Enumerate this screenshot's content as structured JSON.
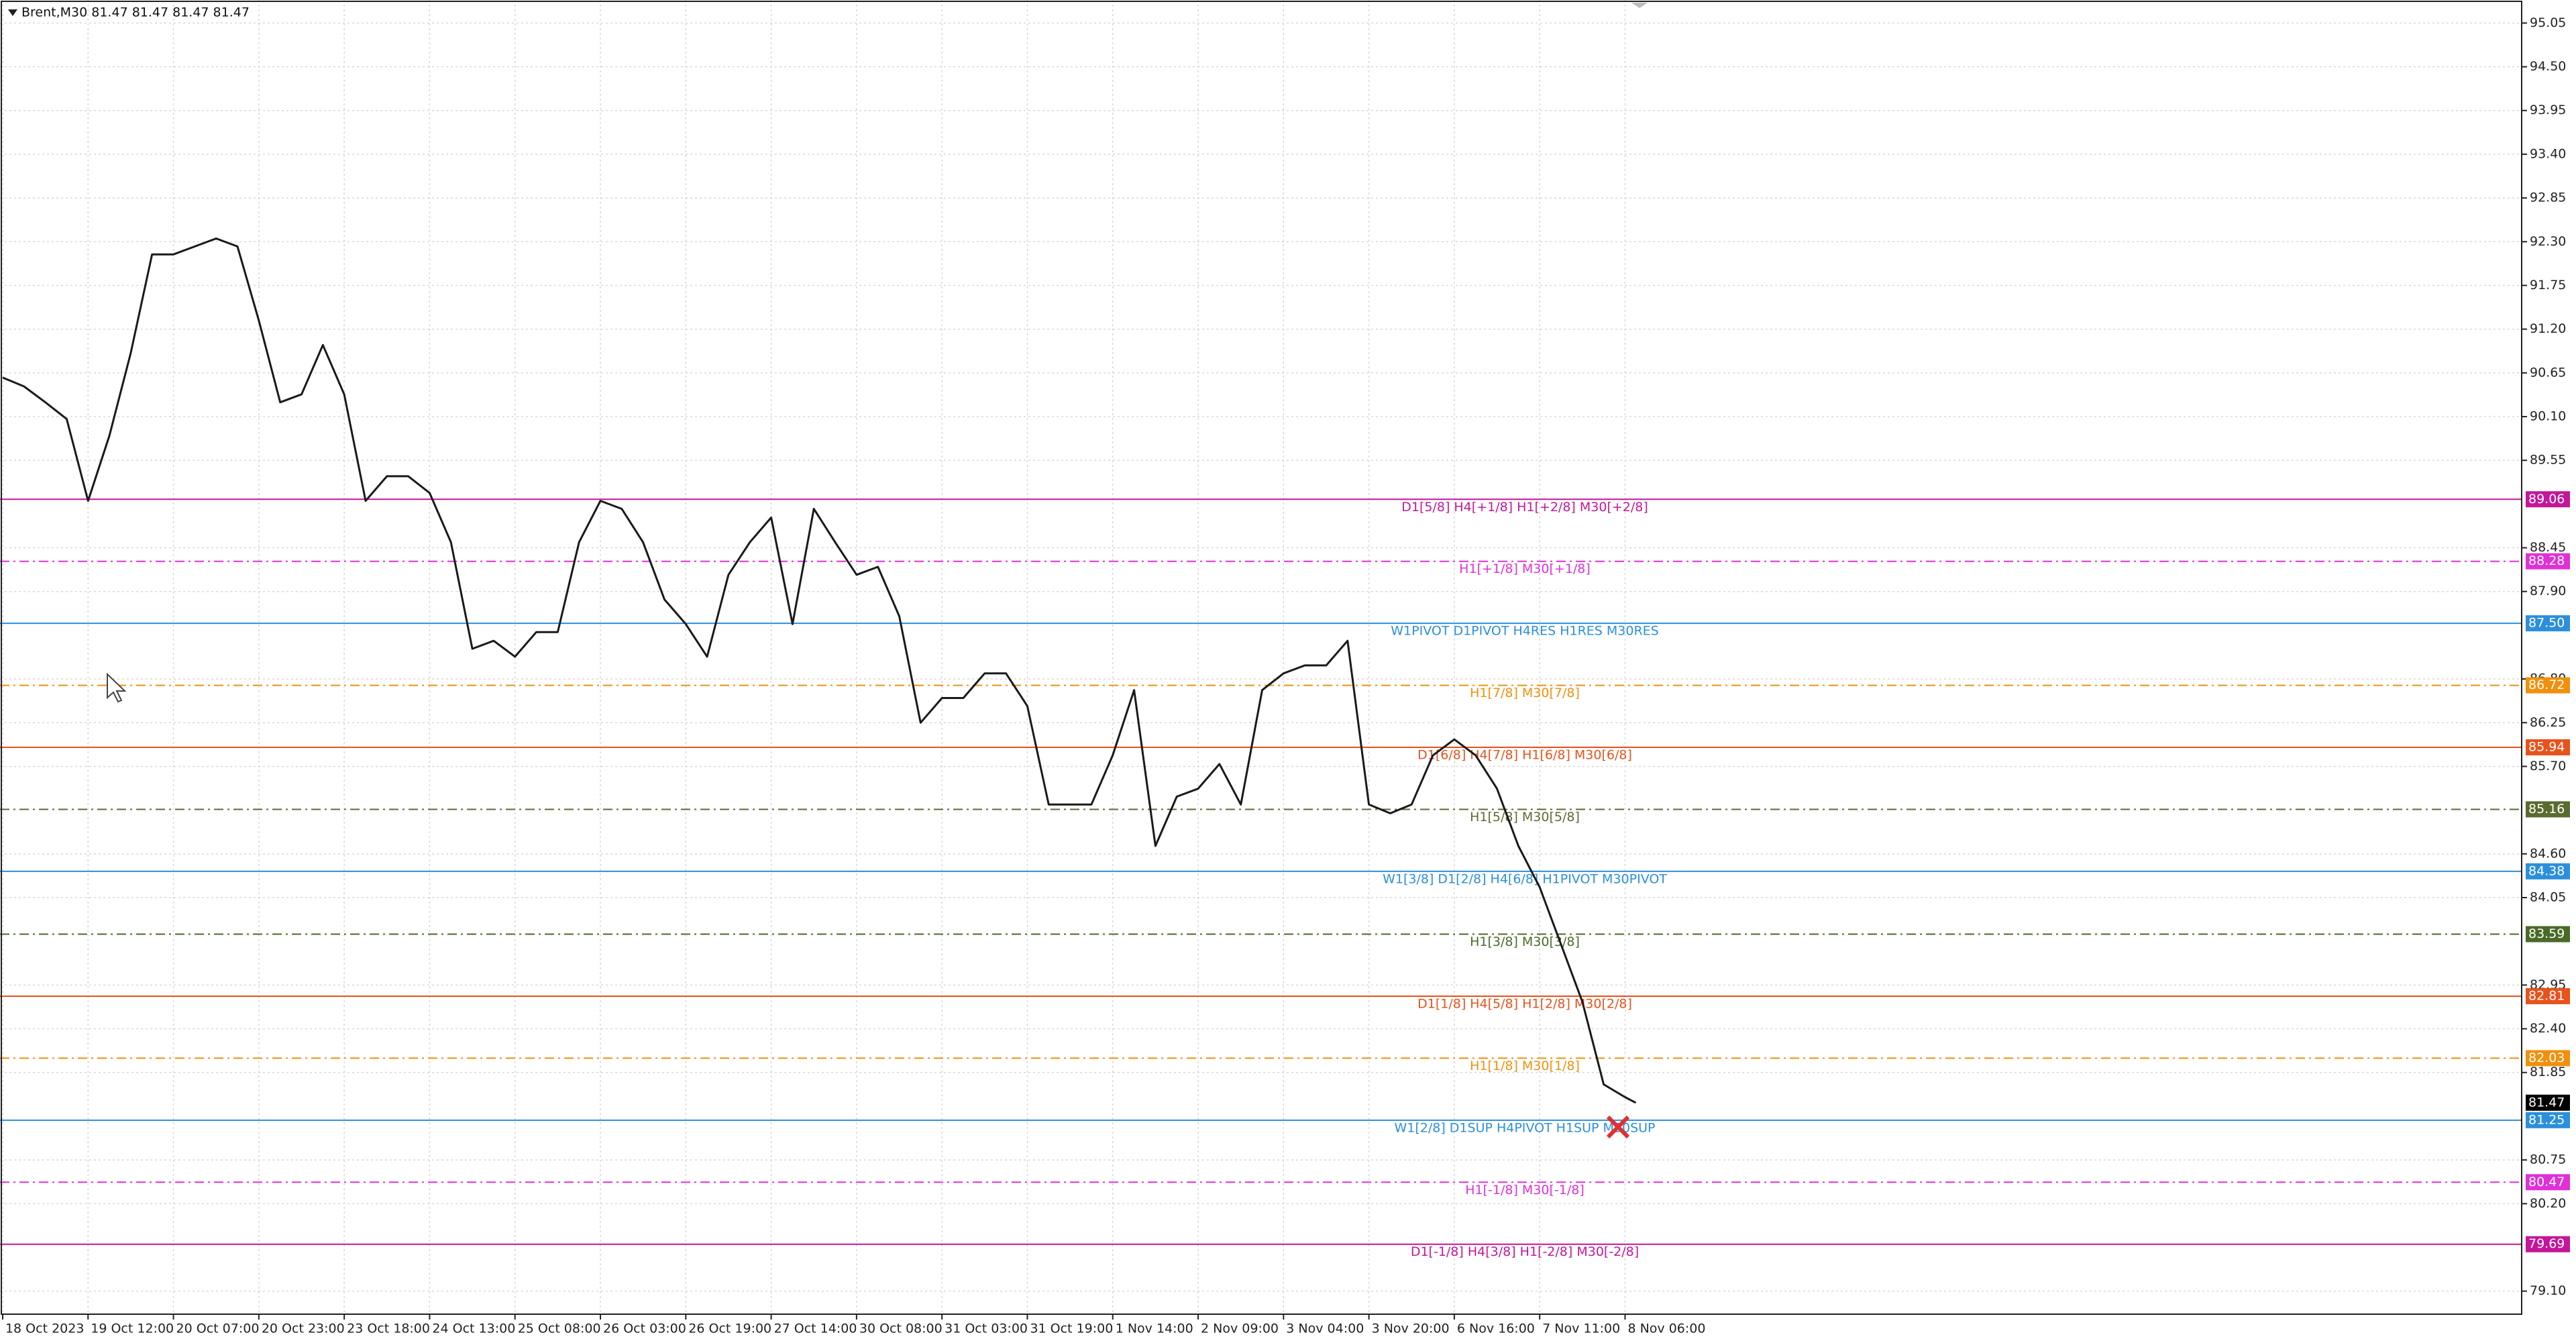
{
  "chart_data": {
    "type": "line",
    "title": "Brent,M30  81.47 81.47 81.47 81.47",
    "color": "#1a1a1a",
    "grid": true,
    "x": [
      0,
      8,
      16,
      24,
      32,
      40,
      48,
      56,
      64,
      72,
      80,
      88,
      96,
      104,
      112,
      120,
      128,
      136,
      144,
      152,
      160,
      168,
      176,
      184,
      192,
      200,
      208,
      216,
      224,
      232,
      240,
      248,
      256,
      264,
      272,
      280,
      288,
      296,
      304,
      312,
      320,
      328,
      336,
      344,
      352,
      360,
      368,
      376,
      384,
      392,
      400,
      408,
      416,
      424,
      432,
      440,
      448,
      456,
      464,
      472,
      480,
      488,
      496,
      504,
      512,
      520,
      528,
      536,
      544,
      552,
      560,
      568,
      576,
      584,
      592,
      600,
      608,
      612
    ],
    "values": [
      90.59,
      90.48,
      90.28,
      90.07,
      89.04,
      89.86,
      90.9,
      92.14,
      92.14,
      92.24,
      92.34,
      92.24,
      91.31,
      90.28,
      90.38,
      91.0,
      90.38,
      89.04,
      89.35,
      89.35,
      89.14,
      88.52,
      87.18,
      87.28,
      87.08,
      87.39,
      87.39,
      88.52,
      89.04,
      88.94,
      88.52,
      87.8,
      87.49,
      87.08,
      88.11,
      88.52,
      88.83,
      87.49,
      88.94,
      88.52,
      88.11,
      88.21,
      87.59,
      86.25,
      86.56,
      86.56,
      86.87,
      86.87,
      86.46,
      85.22,
      85.22,
      85.22,
      85.84,
      86.66,
      84.7,
      85.32,
      85.42,
      85.73,
      85.22,
      86.66,
      86.87,
      86.97,
      86.97,
      87.28,
      85.22,
      85.11,
      85.22,
      85.84,
      86.04,
      85.84,
      85.42,
      84.7,
      84.18,
      83.46,
      82.74,
      81.7,
      81.54,
      81.47
    ],
    "xlim": [
      -1,
      944
    ],
    "xticks": [
      {
        "value": 0,
        "label": "18 Oct 2023"
      },
      {
        "value": 32,
        "label": "19 Oct 12:00"
      },
      {
        "value": 64,
        "label": "20 Oct 07:00"
      },
      {
        "value": 96,
        "label": "20 Oct 23:00"
      },
      {
        "value": 128,
        "label": "23 Oct 18:00"
      },
      {
        "value": 160,
        "label": "24 Oct 13:00"
      },
      {
        "value": 192,
        "label": "25 Oct 08:00"
      },
      {
        "value": 224,
        "label": "26 Oct 03:00"
      },
      {
        "value": 256,
        "label": "26 Oct 19:00"
      },
      {
        "value": 288,
        "label": "27 Oct 14:00"
      },
      {
        "value": 320,
        "label": "30 Oct 08:00"
      },
      {
        "value": 352,
        "label": "31 Oct 03:00"
      },
      {
        "value": 384,
        "label": "31 Oct 19:00"
      },
      {
        "value": 416,
        "label": "1 Nov 14:00"
      },
      {
        "value": 448,
        "label": "2 Nov 09:00"
      },
      {
        "value": 480,
        "label": "3 Nov 04:00"
      },
      {
        "value": 512,
        "label": "3 Nov 20:00"
      },
      {
        "value": 544,
        "label": "6 Nov 16:00"
      },
      {
        "value": 576,
        "label": "7 Nov 11:00"
      },
      {
        "value": 608,
        "label": "8 Nov 06:00"
      }
    ],
    "ylim": [
      78.81,
      95.34
    ],
    "yticks": [
      95.05,
      {
        "value": 94.5,
        "label": "94.50"
      },
      93.95,
      {
        "value": 93.4,
        "label": "93.40"
      },
      92.85,
      {
        "value": 92.3,
        "label": "92.30"
      },
      91.75,
      {
        "value": 91.2,
        "label": "91.20"
      },
      90.65,
      {
        "value": 90.1,
        "label": "90.10"
      },
      89.55,
      88.45,
      {
        "value": 87.9,
        "label": "87.90"
      },
      {
        "value": 86.8,
        "label": "86.80"
      },
      86.25,
      {
        "value": 85.7,
        "label": "85.70"
      },
      {
        "value": 84.6,
        "label": "84.60"
      },
      84.05,
      82.95,
      {
        "value": 82.4,
        "label": "82.40"
      },
      81.85,
      80.75,
      {
        "value": 80.2,
        "label": "80.20"
      },
      {
        "value": 79.1,
        "label": "79.10"
      }
    ],
    "levels": [
      {
        "price": 89.06,
        "label": "D1[5/8] H4[+1/8] H1[+2/8] M30[+2/8]",
        "color": "#c4169a",
        "dash": "solid"
      },
      {
        "price": 88.28,
        "label": "H1[+1/8] M30[+1/8]",
        "color": "#e030d8",
        "dash": "dashdot"
      },
      {
        "price": 87.5,
        "price_label": "87.50",
        "label": "W1PIVOT D1PIVOT H4RES H1RES M30RES",
        "color": "#2b8fdc",
        "dash": "solid"
      },
      {
        "price": 86.72,
        "label": "H1[7/8] M30[7/8]",
        "color": "#f0900c",
        "dash": "dashdot"
      },
      {
        "price": 85.94,
        "label": "D1[6/8] H4[7/8] H1[6/8] M30[6/8]",
        "color": "#e8521c",
        "dash": "solid"
      },
      {
        "price": 85.16,
        "label": "H1[5/8] M30[5/8]",
        "color": "#5a6b30",
        "dash": "dashdot"
      },
      {
        "price": 84.38,
        "label": "W1[3/8] D1[2/8] H4[6/8] H1PIVOT M30PIVOT",
        "color": "#2b8fdc",
        "dash": "solid"
      },
      {
        "price": 83.59,
        "label": "H1[3/8] M30[3/8]",
        "color": "#4a6a28",
        "dash": "dashdot"
      },
      {
        "price": 82.81,
        "label": "D1[1/8] H4[5/8] H1[2/8] M30[2/8]",
        "color": "#e8521c",
        "dash": "solid"
      },
      {
        "price": 82.03,
        "label": "H1[1/8] M30[1/8]",
        "color": "#f0900c",
        "dash": "dashdot"
      },
      {
        "price": 81.25,
        "label": "W1[2/8] D1SUP H4PIVOT H1SUP M30SUP",
        "color": "#2b8fdc",
        "dash": "solid"
      },
      {
        "price": 80.47,
        "label": "H1[-1/8] M30[-1/8]",
        "color": "#e030d8",
        "dash": "dashdot"
      },
      {
        "price": 79.69,
        "label": "D1[-1/8] H4[3/8] H1[-2/8] M30[-2/8]",
        "color": "#c4169a",
        "dash": "solid"
      }
    ]
  }
}
